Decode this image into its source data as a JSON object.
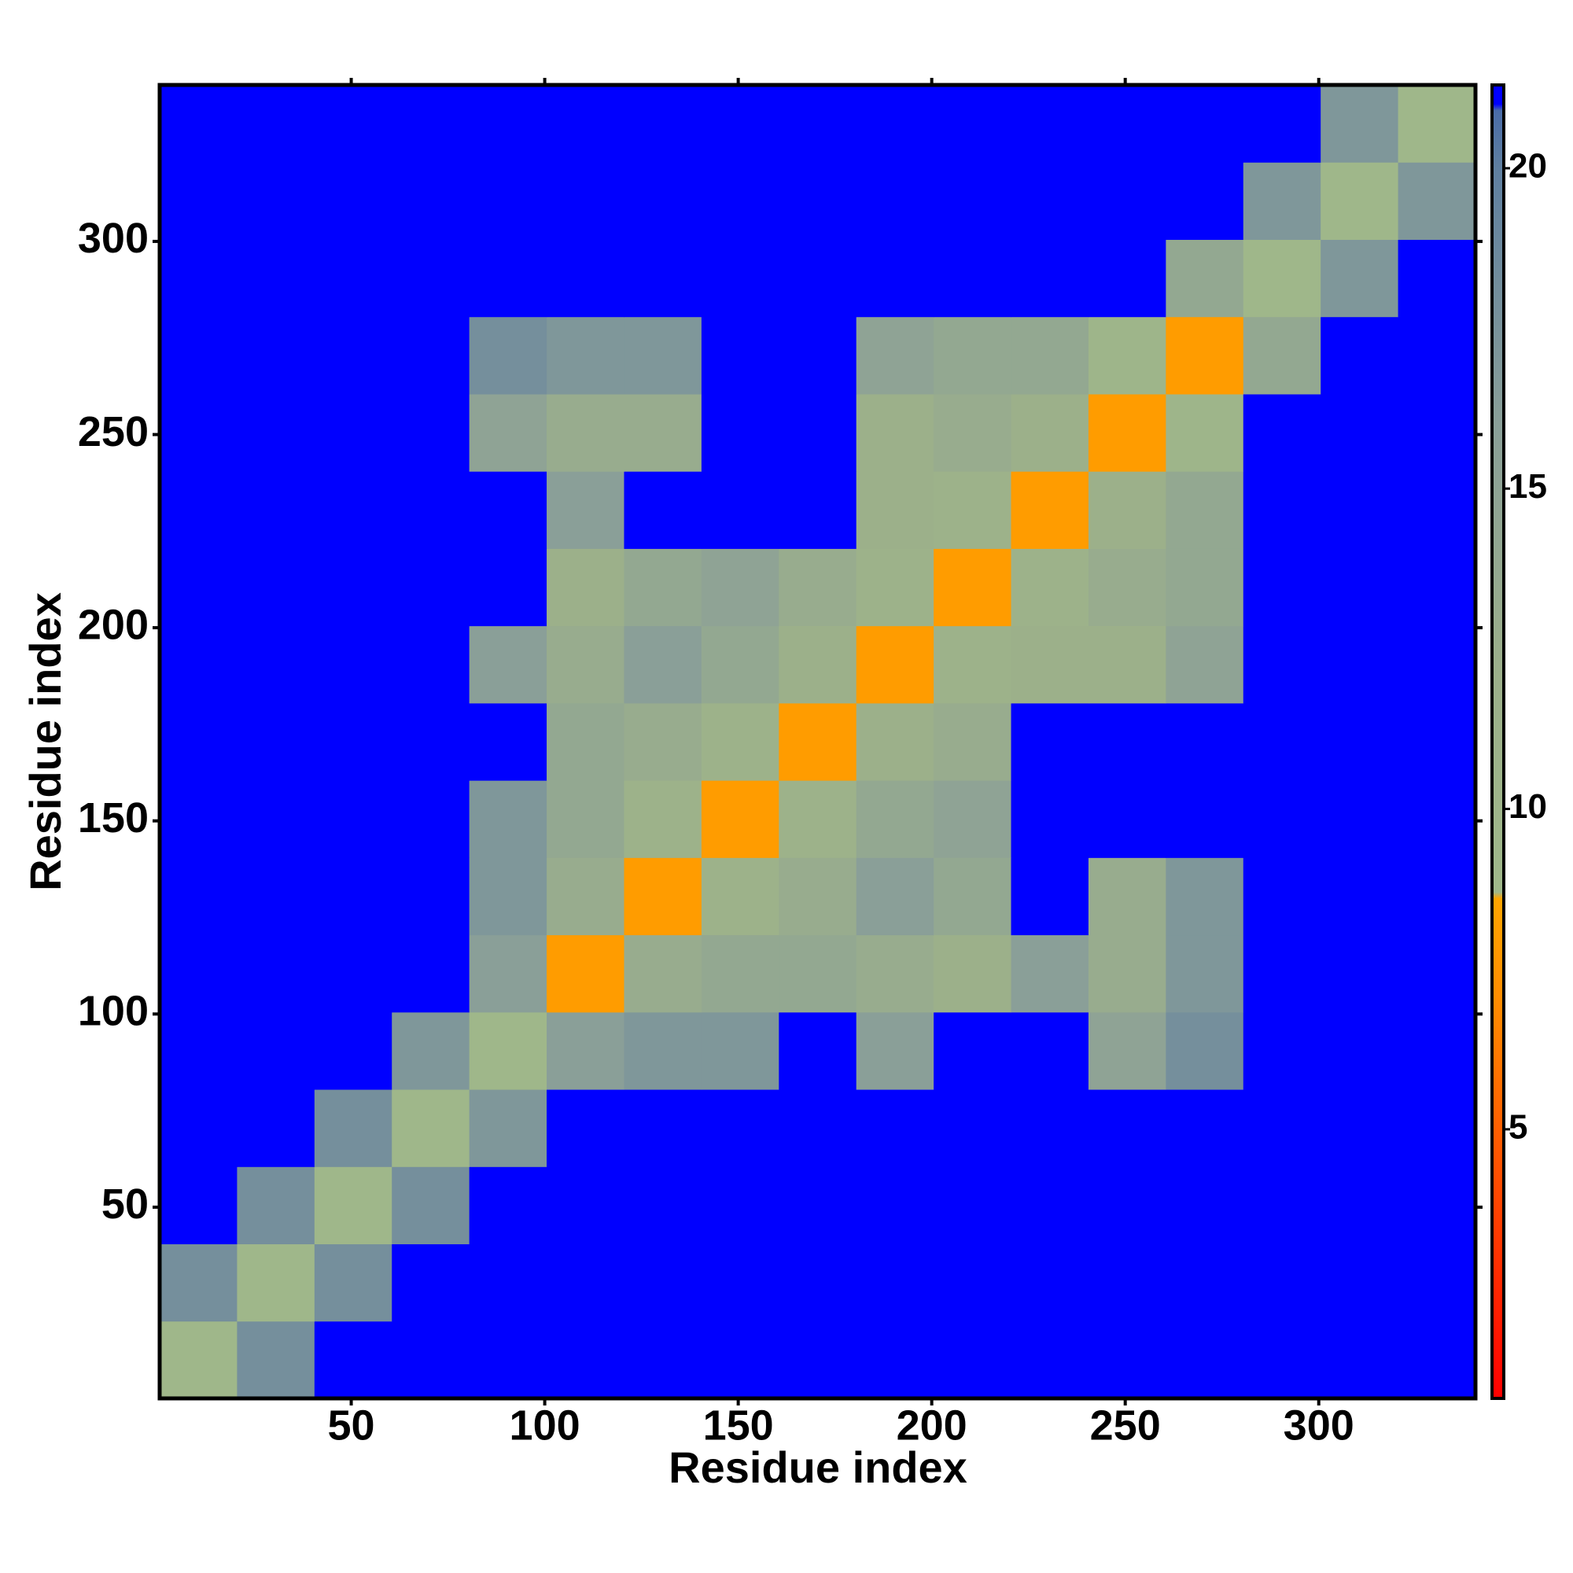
{
  "chart_data": {
    "type": "heatmap",
    "x_label": "Residue index",
    "y_label": "Residue index",
    "xbins": [
      0.5,
      20.5,
      40.5,
      60.5,
      80.5,
      100.5,
      120.5,
      140.5,
      160.5,
      180.5,
      200.5,
      220.5,
      240.5,
      260.5,
      280.5,
      300.5,
      320.5,
      340.5
    ],
    "ybins": [
      0.5,
      20.5,
      40.5,
      60.5,
      80.5,
      100.5,
      120.5,
      140.5,
      160.5,
      180.5,
      200.5,
      220.5,
      240.5,
      260.5,
      280.5,
      300.5,
      320.5,
      340.5
    ],
    "z": [
      [
        9,
        18,
        21,
        21,
        21,
        21,
        21,
        21,
        21,
        21,
        21,
        21,
        21,
        21,
        21,
        21,
        21
      ],
      [
        18,
        9,
        18,
        21,
        21,
        21,
        21,
        21,
        21,
        21,
        21,
        21,
        21,
        21,
        21,
        21,
        21
      ],
      [
        21,
        18,
        9,
        18,
        21,
        21,
        21,
        21,
        21,
        21,
        21,
        21,
        21,
        21,
        21,
        21,
        21
      ],
      [
        21,
        21,
        18,
        9,
        17,
        21,
        21,
        21,
        21,
        21,
        21,
        21,
        21,
        21,
        21,
        21,
        21
      ],
      [
        21,
        21,
        21,
        17,
        9,
        16,
        17,
        17,
        21,
        16,
        21,
        21,
        15,
        18,
        21,
        21,
        21
      ],
      [
        21,
        21,
        21,
        21,
        16,
        8,
        13,
        14,
        14,
        13,
        12,
        16,
        13,
        17,
        21,
        21,
        21
      ],
      [
        21,
        21,
        21,
        21,
        17,
        13,
        8,
        11,
        13,
        16,
        14,
        21,
        13,
        17,
        21,
        21,
        21
      ],
      [
        21,
        21,
        21,
        21,
        17,
        14,
        11,
        8,
        11,
        14,
        15,
        21,
        21,
        21,
        21,
        21,
        21
      ],
      [
        21,
        21,
        21,
        21,
        21,
        14,
        13,
        11,
        8,
        12,
        13,
        21,
        21,
        21,
        21,
        21,
        21
      ],
      [
        21,
        21,
        21,
        21,
        16,
        13,
        16,
        14,
        12,
        8,
        11,
        12,
        12,
        15,
        21,
        21,
        21
      ],
      [
        21,
        21,
        21,
        21,
        21,
        12,
        14,
        15,
        13,
        11,
        8,
        11,
        13,
        14,
        21,
        21,
        21
      ],
      [
        21,
        21,
        21,
        21,
        21,
        16,
        21,
        21,
        21,
        12,
        11,
        8,
        12,
        14,
        21,
        21,
        21
      ],
      [
        21,
        21,
        21,
        21,
        15,
        13,
        13,
        21,
        21,
        12,
        13,
        12,
        8,
        10,
        21,
        21,
        21
      ],
      [
        21,
        21,
        21,
        21,
        18,
        17,
        17,
        21,
        21,
        15,
        14,
        14,
        10,
        8,
        14,
        21,
        21
      ],
      [
        21,
        21,
        21,
        21,
        21,
        21,
        21,
        21,
        21,
        21,
        21,
        21,
        21,
        14,
        9,
        17,
        21
      ],
      [
        21,
        21,
        21,
        21,
        21,
        21,
        21,
        21,
        21,
        21,
        21,
        21,
        21,
        21,
        17,
        9,
        17
      ],
      [
        21,
        21,
        21,
        21,
        21,
        21,
        21,
        21,
        21,
        21,
        21,
        21,
        21,
        21,
        21,
        17,
        9
      ]
    ],
    "xlim": [
      0.5,
      340.5
    ],
    "ylim": [
      0.5,
      340.5
    ],
    "xticks": [
      50,
      100,
      150,
      200,
      250,
      300
    ],
    "yticks": [
      50,
      100,
      150,
      200,
      250,
      300
    ],
    "clim": [
      0.8,
      21.3
    ],
    "cticks": [
      5,
      10,
      15,
      20
    ],
    "colorscale": [
      [
        0.8,
        "#ff0000"
      ],
      [
        7,
        "#ff8c00"
      ],
      [
        8.6,
        "#ffa500"
      ],
      [
        8.7,
        "#9fb88a"
      ],
      [
        12,
        "#9cb08a"
      ],
      [
        16,
        "#8a9f98"
      ],
      [
        20,
        "#5f7fa0"
      ],
      [
        20.9,
        "#4a6ca8"
      ],
      [
        21,
        "#0000ff"
      ],
      [
        21.3,
        "#0000ff"
      ]
    ]
  }
}
